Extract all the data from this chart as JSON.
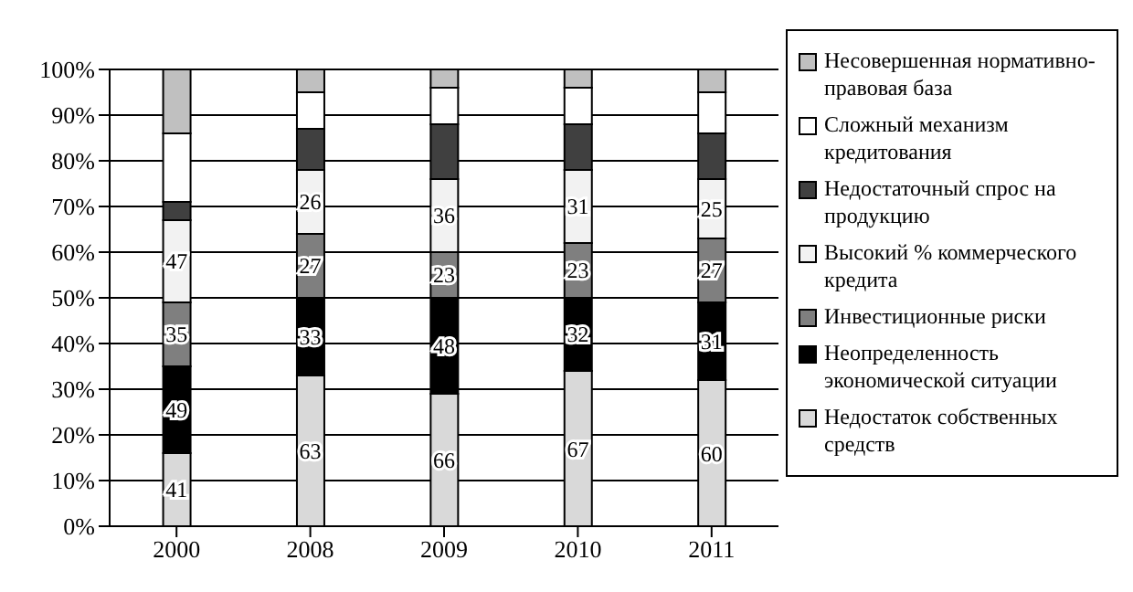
{
  "chart_data": {
    "type": "bar",
    "stacked": true,
    "categories": [
      "2000",
      "2008",
      "2009",
      "2010",
      "2011"
    ],
    "series": [
      {
        "name": "Недостаток собственных средств",
        "color": "#d9d9d9",
        "values": [
          16,
          33,
          29,
          34,
          32
        ]
      },
      {
        "name": "Неопределенность экономической ситуации",
        "color": "#000000",
        "values": [
          19,
          17,
          21,
          16,
          17
        ]
      },
      {
        "name": "Инвестиционные риски",
        "color": "#7f7f7f",
        "values": [
          14,
          14,
          10,
          12,
          14
        ]
      },
      {
        "name": "Высокий % коммерческого кредита",
        "color": "#f2f2f2",
        "values": [
          18,
          14,
          16,
          16,
          13
        ]
      },
      {
        "name": "Недостаточный спрос на продукцию",
        "color": "#404040",
        "values": [
          4,
          9,
          12,
          10,
          10
        ]
      },
      {
        "name": "Сложный механизм кредитования",
        "color": "#ffffff",
        "values": [
          15,
          8,
          8,
          8,
          9
        ]
      },
      {
        "name": "Несовершенная нормативно-правовая база",
        "color": "#c0c0c0",
        "values": [
          14,
          5,
          4,
          4,
          5
        ]
      }
    ],
    "annotations": [
      {
        "text": "41",
        "x": "2000",
        "y": 16
      },
      {
        "text": "49",
        "x": "2000",
        "y": 35
      },
      {
        "text": "35",
        "x": "2000",
        "y": 49
      },
      {
        "text": "47",
        "x": "2000",
        "y": 67
      },
      {
        "text": "63",
        "x": "2008",
        "y": 33
      },
      {
        "text": "33",
        "x": "2008",
        "y": 50
      },
      {
        "text": "27",
        "x": "2008",
        "y": 64
      },
      {
        "text": "26",
        "x": "2008",
        "y": 78
      },
      {
        "text": "66",
        "x": "2009",
        "y": 29
      },
      {
        "text": "48",
        "x": "2009",
        "y": 50
      },
      {
        "text": "23",
        "x": "2009",
        "y": 60
      },
      {
        "text": "36",
        "x": "2009",
        "y": 76
      },
      {
        "text": "67",
        "x": "2010",
        "y": 34
      },
      {
        "text": "32",
        "x": "2010",
        "y": 50
      },
      {
        "text": "23",
        "x": "2010",
        "y": 62
      },
      {
        "text": "31",
        "x": "2010",
        "y": 78
      },
      {
        "text": "60",
        "x": "2011",
        "y": 32
      },
      {
        "text": "31",
        "x": "2011",
        "y": 49
      },
      {
        "text": "27",
        "x": "2011",
        "y": 63
      },
      {
        "text": "25",
        "x": "2011",
        "y": 76
      }
    ],
    "ylim": [
      0,
      100
    ],
    "yticks": [
      {
        "value": 0,
        "label": "0%"
      },
      {
        "value": 10,
        "label": "10%"
      },
      {
        "value": 20,
        "label": "20%"
      },
      {
        "value": 30,
        "label": "30%"
      },
      {
        "value": 40,
        "label": "40%"
      },
      {
        "value": 50,
        "label": "50%"
      },
      {
        "value": 60,
        "label": "60%"
      },
      {
        "value": 70,
        "label": "70%"
      },
      {
        "value": 80,
        "label": "80%"
      },
      {
        "value": 90,
        "label": "90%"
      },
      {
        "value": 100,
        "label": "100%"
      }
    ],
    "grid": "y",
    "legend": "right"
  }
}
